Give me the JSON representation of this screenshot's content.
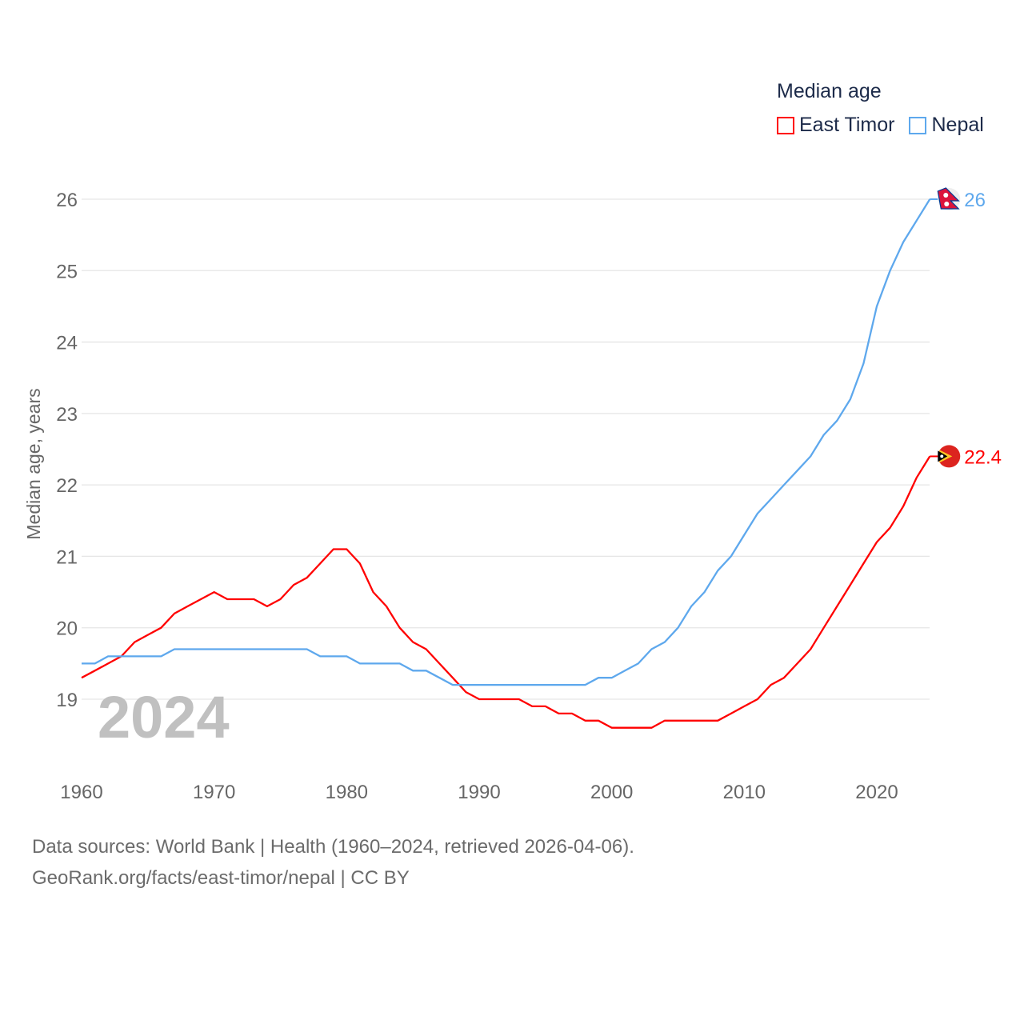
{
  "chart_data": {
    "type": "line",
    "title": "Median age",
    "xlabel": "",
    "ylabel": "Median age, years",
    "xlim": [
      1960,
      2024
    ],
    "ylim": [
      18.35,
      26.3
    ],
    "x_ticks": [
      1960,
      1970,
      1980,
      1990,
      2000,
      2010,
      2020
    ],
    "y_ticks": [
      19,
      20,
      21,
      22,
      23,
      24,
      25,
      26
    ],
    "grid": true,
    "legend_position": "top-right",
    "watermark_year": "2024",
    "x": [
      1960,
      1961,
      1962,
      1963,
      1964,
      1965,
      1966,
      1967,
      1968,
      1969,
      1970,
      1971,
      1972,
      1973,
      1974,
      1975,
      1976,
      1977,
      1978,
      1979,
      1980,
      1981,
      1982,
      1983,
      1984,
      1985,
      1986,
      1987,
      1988,
      1989,
      1990,
      1991,
      1992,
      1993,
      1994,
      1995,
      1996,
      1997,
      1998,
      1999,
      2000,
      2001,
      2002,
      2003,
      2004,
      2005,
      2006,
      2007,
      2008,
      2009,
      2010,
      2011,
      2012,
      2013,
      2014,
      2015,
      2016,
      2017,
      2018,
      2019,
      2020,
      2021,
      2022,
      2023,
      2024
    ],
    "series": [
      {
        "name": "East Timor",
        "color": "#ff0000",
        "end_label": "22.4",
        "flag": "east-timor",
        "values": [
          19.3,
          19.4,
          19.5,
          19.6,
          19.8,
          19.9,
          20.0,
          20.2,
          20.3,
          20.4,
          20.5,
          20.4,
          20.4,
          20.4,
          20.3,
          20.4,
          20.6,
          20.7,
          20.9,
          21.1,
          21.1,
          20.9,
          20.5,
          20.3,
          20.0,
          19.8,
          19.7,
          19.5,
          19.3,
          19.1,
          19.0,
          19.0,
          19.0,
          19.0,
          18.9,
          18.9,
          18.8,
          18.8,
          18.7,
          18.7,
          18.6,
          18.6,
          18.6,
          18.6,
          18.7,
          18.7,
          18.7,
          18.7,
          18.7,
          18.8,
          18.9,
          19.0,
          19.2,
          19.3,
          19.5,
          19.7,
          20.0,
          20.3,
          20.6,
          20.9,
          21.2,
          21.4,
          21.7,
          22.1,
          22.4
        ]
      },
      {
        "name": "Nepal",
        "color": "#5ea8ed",
        "end_label": "26",
        "flag": "nepal",
        "values": [
          19.5,
          19.5,
          19.6,
          19.6,
          19.6,
          19.6,
          19.6,
          19.7,
          19.7,
          19.7,
          19.7,
          19.7,
          19.7,
          19.7,
          19.7,
          19.7,
          19.7,
          19.7,
          19.6,
          19.6,
          19.6,
          19.5,
          19.5,
          19.5,
          19.5,
          19.4,
          19.4,
          19.3,
          19.2,
          19.2,
          19.2,
          19.2,
          19.2,
          19.2,
          19.2,
          19.2,
          19.2,
          19.2,
          19.2,
          19.3,
          19.3,
          19.4,
          19.5,
          19.7,
          19.8,
          20.0,
          20.3,
          20.5,
          20.8,
          21.0,
          21.3,
          21.6,
          21.8,
          22.0,
          22.2,
          22.4,
          22.7,
          22.9,
          23.2,
          23.7,
          24.5,
          25.0,
          25.4,
          25.7,
          26.0
        ]
      }
    ]
  },
  "footer": {
    "line1": "Data sources: World Bank | Health (1960–2024, retrieved 2026-04-06).",
    "line2": "GeoRank.org/facts/east-timor/nepal | CC BY"
  }
}
